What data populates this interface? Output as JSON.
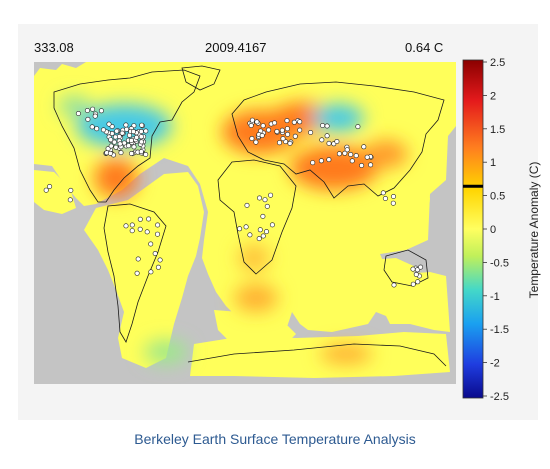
{
  "header": {
    "left_value": "333.08",
    "center_value": "2009.4167",
    "right_value": "0.64 C"
  },
  "caption": "Berkeley Earth Surface Temperature Analysis",
  "colorbar": {
    "label": "Temperature Anomaly (C)",
    "min": -2.5,
    "max": 2.5,
    "ticks": [
      "2.5",
      "2",
      "1.5",
      "1",
      "0.5",
      "0",
      "-0.5",
      "-1",
      "-1.5",
      "-2",
      "-2.5"
    ],
    "marker_value": 0.64
  },
  "colors": {
    "no_data": "#c4c4c4",
    "neutral": "#ffff5a",
    "warm": "#ff7a1e",
    "cool": "#47c9e6",
    "station": "#ffffff",
    "caption": "#2d5a91"
  }
}
